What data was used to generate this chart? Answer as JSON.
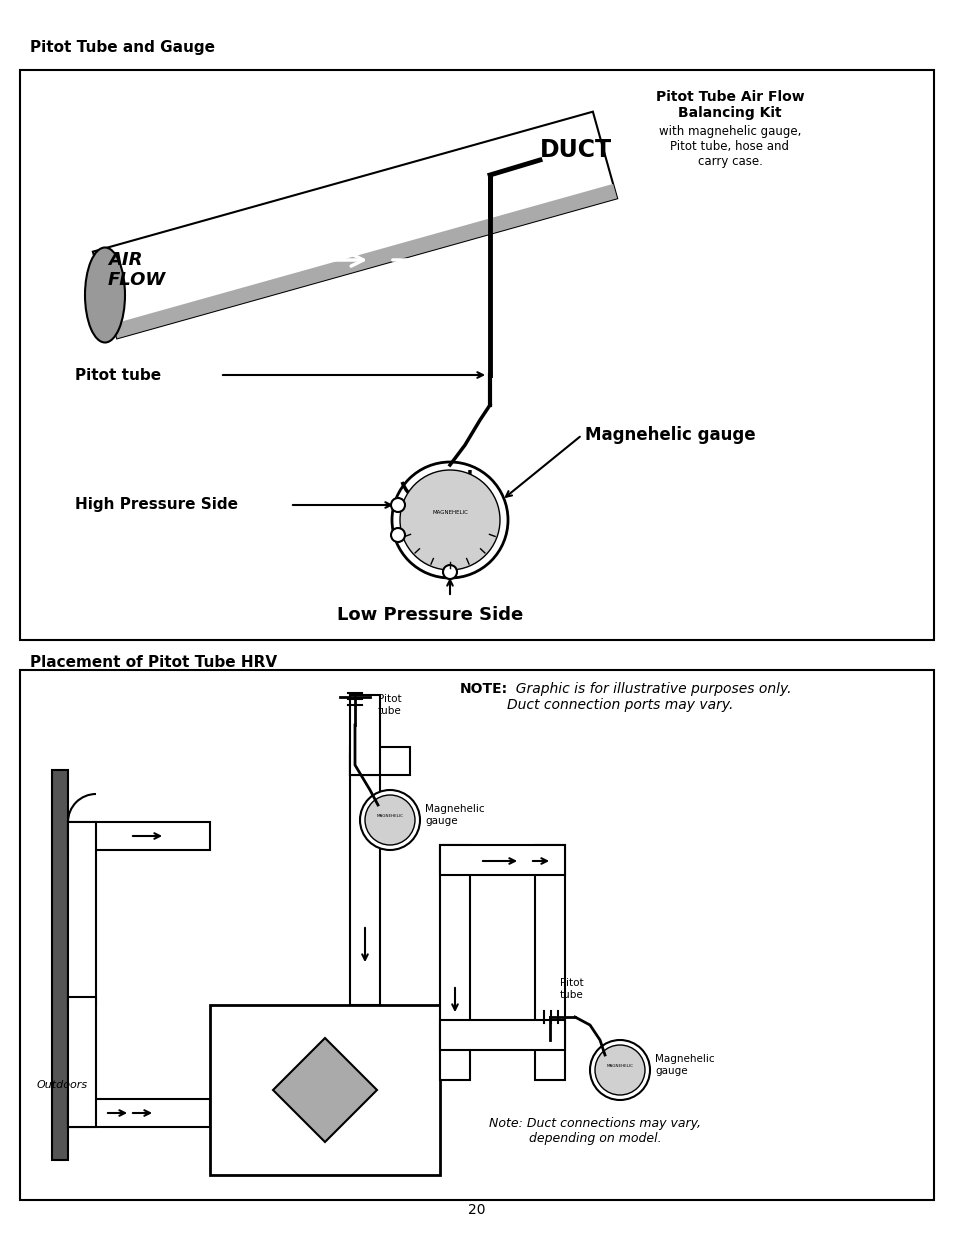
{
  "title1": "Pitot Tube and Gauge",
  "title2": "Placement of Pitot Tube HRV",
  "box1_label_duct": "DUCT",
  "box1_label_airflow": "AIR\nFLOW",
  "box1_pitot_tube": "Pitot tube",
  "box1_magnehelic": "Magnehelic gauge",
  "box1_high_pressure": "High Pressure Side",
  "box1_low_pressure": "Low Pressure Side",
  "box1_kit_title": "Pitot Tube Air Flow\nBalancing Kit",
  "box1_kit_desc": "with magnehelic gauge,\nPitot tube, hose and\ncarry case.",
  "box2_note": "NOTE:",
  "box2_note_italic": "  Graphic is for illustrative purposes only.\nDuct connection ports may vary.",
  "box2_pitot_tube1": "Pitot\ntube",
  "box2_magnehelic1": "Magnehelic\ngauge",
  "box2_pitot_tube2": "Pitot\ntube",
  "box2_magnehelic2": "Magnehelic\ngauge",
  "box2_outdoors": "Outdoors",
  "box2_note2": "Note: Duct connections may vary,\ndepending on model.",
  "bg_color": "#ffffff",
  "text_color": "#000000",
  "page_number": "20"
}
